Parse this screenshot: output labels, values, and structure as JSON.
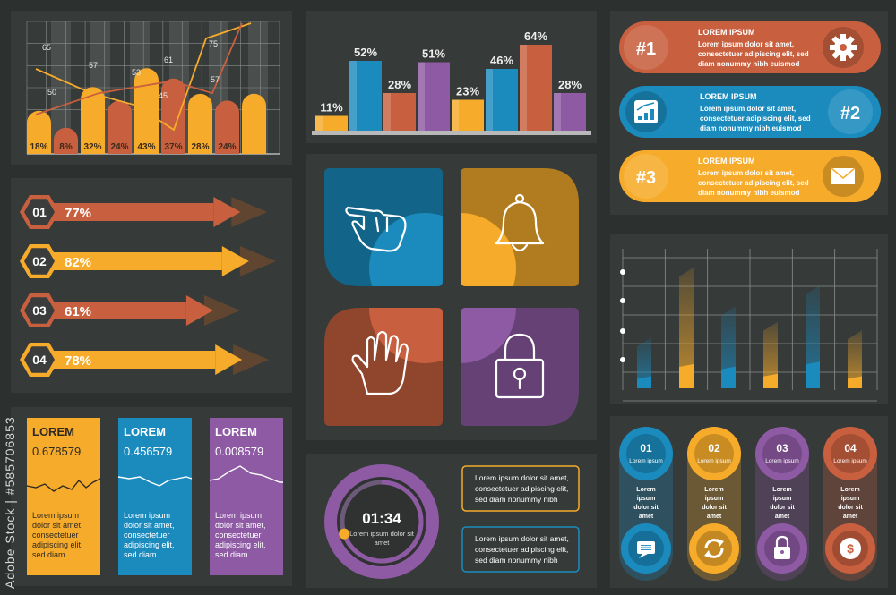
{
  "colors": {
    "bg": "#2c302f",
    "panel": "#363a39",
    "orange": "#f6ab2b",
    "rust": "#c8603f",
    "blue": "#1b8bbe",
    "purple": "#8e5aa4",
    "grid": "#8a8e8c"
  },
  "watermark": {
    "side": "Adobe Stock | #585706853"
  },
  "chart1": {
    "type": "bar+line",
    "bar_labels": [
      "18%",
      "8%",
      "32%",
      "24%",
      "43%",
      "37%",
      "28%",
      "24%"
    ],
    "bar_values": [
      18,
      8,
      32,
      24,
      43,
      37,
      28,
      24
    ],
    "extra_bar_value": 28,
    "line_orange": [
      65,
      57,
      53,
      45,
      75
    ],
    "line_rust": [
      50,
      57,
      61,
      57
    ],
    "line_labels": [
      "65",
      "57",
      "53",
      "45",
      "75",
      "50",
      "61",
      "57"
    ]
  },
  "chart2": {
    "type": "bar",
    "values": [
      11,
      52,
      28,
      51,
      23,
      46,
      64,
      28
    ],
    "labels": [
      "11%",
      "52%",
      "28%",
      "51%",
      "23%",
      "46%",
      "64%",
      "28%"
    ],
    "colors": [
      "#f6ab2b",
      "#1b8bbe",
      "#c8603f",
      "#8e5aa4",
      "#f6ab2b",
      "#1b8bbe",
      "#c8603f",
      "#8e5aa4"
    ]
  },
  "ribbons": [
    {
      "num": "#1",
      "title": "LOREM IPSUM",
      "text": [
        "Lorem ipsum dolor sit amet,",
        "consectetuer adipiscing elit, sed",
        "diam nonummy nibh euismod"
      ],
      "icon": "gear-icon"
    },
    {
      "num": "#2",
      "title": "LOREM IPSUM",
      "text": [
        "Lorem ipsum dolor sit amet,",
        "consectetuer adipiscing elit, sed",
        "diam nonummy nibh euismod"
      ],
      "icon": "growth-chart-icon"
    },
    {
      "num": "#3",
      "title": "LOREM IPSUM",
      "text": [
        "Lorem ipsum dolor sit amet,",
        "consectetuer adipiscing elit, sed",
        "diam nonummy nibh euismod"
      ],
      "icon": "mail-icon"
    }
  ],
  "arrows": [
    {
      "num": "01",
      "pct": "77%",
      "value": 77
    },
    {
      "num": "02",
      "pct": "82%",
      "value": 82
    },
    {
      "num": "03",
      "pct": "61%",
      "value": 61
    },
    {
      "num": "04",
      "pct": "78%",
      "value": 78
    }
  ],
  "tiles": [
    {
      "icon": "pointing-hand-icon"
    },
    {
      "icon": "bell-icon"
    },
    {
      "icon": "raised-hand-icon"
    },
    {
      "icon": "padlock-icon"
    }
  ],
  "chart3": {
    "type": "bar",
    "bars": [
      {
        "color": "blue",
        "total": 42,
        "fill": 10
      },
      {
        "color": "orange",
        "total": 100,
        "fill": 20
      },
      {
        "color": "blue",
        "total": 68,
        "fill": 18
      },
      {
        "color": "orange",
        "total": 55,
        "fill": 12
      },
      {
        "color": "blue",
        "total": 85,
        "fill": 22
      },
      {
        "color": "orange",
        "total": 48,
        "fill": 10
      }
    ]
  },
  "cards": [
    {
      "title": "LOREM",
      "value": "0.678579",
      "text": [
        "Lorem ipsum",
        "dolor sit amet,",
        "consectetuer",
        "adipiscing elit,",
        "sed diam"
      ]
    },
    {
      "title": "LOREM",
      "value": "0.456579",
      "text": [
        "Lorem ipsum",
        "dolor sit amet,",
        "consectetuer",
        "adipiscing elit,",
        "sed diam"
      ]
    },
    {
      "title": "LOREM",
      "value": "0.008579",
      "text": [
        "Lorem ipsum",
        "dolor sit amet,",
        "consectetuer",
        "adipiscing elit,",
        "sed diam"
      ]
    }
  ],
  "timer": {
    "time": "01:34",
    "text": [
      "Lorem ipsum dolor sit",
      "amet"
    ],
    "progress": 0.7
  },
  "text_boxes": [
    [
      "Lorem ipsum dolor sit amet,",
      "consectetuer adipiscing elit,",
      "sed diam nonummy nibh"
    ],
    [
      "Lorem ipsum dolor sit amet,",
      "consectetuer adipiscing elit,",
      "sed diam nonummy nibh"
    ]
  ],
  "steps": [
    {
      "num": "01",
      "text": [
        "Lorem",
        "ipsum",
        "dolor sit",
        "amet"
      ],
      "icon": "chat-icon"
    },
    {
      "num": "02",
      "text": [
        "Lorem",
        "ipsum",
        "dolor sit",
        "amet"
      ],
      "icon": "refresh-icon"
    },
    {
      "num": "03",
      "text": [
        "Lorem",
        "ipsum",
        "dolor sit",
        "amet"
      ],
      "icon": "lock-icon"
    },
    {
      "num": "04",
      "text": [
        "Lorem",
        "ipsum",
        "dolor sit",
        "amet"
      ],
      "icon": "dollar-icon"
    }
  ]
}
